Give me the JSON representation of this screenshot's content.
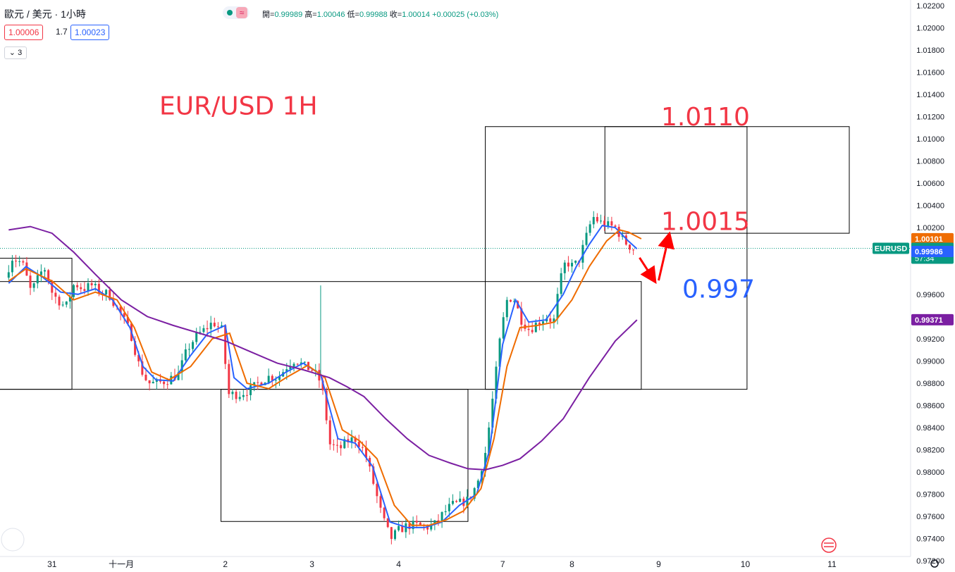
{
  "header": {
    "symbol_label": "歐元 / 美元 · 1小時",
    "open_label": "開",
    "open": "0.99989",
    "high_label": "高",
    "high": "1.00046",
    "low_label": "低",
    "low": "0.99988",
    "close_label": "收",
    "close": "1.00014",
    "change": "+0.00025 (+0.03%)",
    "bid": "1.00006",
    "spread": "1.7",
    "ask": "1.00023",
    "indicator_count": "3"
  },
  "chart_data": {
    "type": "candlestick",
    "ylim": [
      0.971,
      1.0225
    ],
    "y_ticks": [
      "1.02200",
      "1.02000",
      "1.01800",
      "1.01600",
      "1.01400",
      "1.01200",
      "1.01000",
      "1.00800",
      "1.00600",
      "1.00400",
      "1.00200",
      "0.99600",
      "0.99400",
      "0.99200",
      "0.99000",
      "0.98800",
      "0.98600",
      "0.98400",
      "0.98200",
      "0.98000",
      "0.97800",
      "0.97600",
      "0.97400",
      "0.97200"
    ],
    "x_ticks": [
      {
        "label": "31",
        "t": 0.5
      },
      {
        "label": "十一月",
        "t": 1.3
      },
      {
        "label": "2",
        "t": 2.5
      },
      {
        "label": "3",
        "t": 3.5
      },
      {
        "label": "4",
        "t": 4.5
      },
      {
        "label": "7",
        "t": 5.7
      },
      {
        "label": "8",
        "t": 6.5
      },
      {
        "label": "9",
        "t": 7.5
      },
      {
        "label": "10",
        "t": 8.5
      },
      {
        "label": "11",
        "t": 9.5
      }
    ],
    "price_path": [
      [
        0.0,
        0.9975
      ],
      [
        0.08,
        0.9993
      ],
      [
        0.2,
        0.9988
      ],
      [
        0.3,
        0.9962
      ],
      [
        0.45,
        0.9985
      ],
      [
        0.55,
        0.996
      ],
      [
        0.7,
        0.9948
      ],
      [
        0.8,
        0.997
      ],
      [
        0.9,
        0.9965
      ],
      [
        1.0,
        0.9968
      ],
      [
        1.1,
        0.9962
      ],
      [
        1.2,
        0.996
      ],
      [
        1.35,
        0.994
      ],
      [
        1.45,
        0.9925
      ],
      [
        1.55,
        0.9895
      ],
      [
        1.65,
        0.988
      ],
      [
        1.75,
        0.988
      ],
      [
        1.85,
        0.9882
      ],
      [
        2.0,
        0.9888
      ],
      [
        2.1,
        0.991
      ],
      [
        2.2,
        0.9922
      ],
      [
        2.3,
        0.9928
      ],
      [
        2.4,
        0.9935
      ],
      [
        2.5,
        0.9928
      ],
      [
        2.58,
        0.987
      ],
      [
        2.7,
        0.987
      ],
      [
        2.85,
        0.9875
      ],
      [
        2.95,
        0.9882
      ],
      [
        3.05,
        0.9886
      ],
      [
        3.15,
        0.9885
      ],
      [
        3.25,
        0.9895
      ],
      [
        3.35,
        0.9902
      ],
      [
        3.45,
        0.9895
      ],
      [
        3.55,
        0.9892
      ],
      [
        3.65,
        0.988
      ],
      [
        3.75,
        0.9825
      ],
      [
        3.85,
        0.982
      ],
      [
        3.95,
        0.9828
      ],
      [
        4.05,
        0.983
      ],
      [
        4.15,
        0.9818
      ],
      [
        4.25,
        0.979
      ],
      [
        4.35,
        0.976
      ],
      [
        4.45,
        0.974
      ],
      [
        4.55,
        0.9748
      ],
      [
        4.65,
        0.9752
      ],
      [
        4.75,
        0.9752
      ],
      [
        4.85,
        0.975
      ],
      [
        4.95,
        0.9752
      ],
      [
        5.05,
        0.9762
      ],
      [
        5.15,
        0.977
      ],
      [
        5.25,
        0.9772
      ],
      [
        5.35,
        0.9775
      ],
      [
        5.45,
        0.979
      ],
      [
        5.55,
        0.982
      ],
      [
        5.65,
        0.988
      ],
      [
        5.72,
        0.9925
      ],
      [
        5.8,
        0.9958
      ],
      [
        5.88,
        0.9955
      ],
      [
        5.95,
        0.9938
      ],
      [
        6.05,
        0.9928
      ],
      [
        6.15,
        0.9935
      ],
      [
        6.25,
        0.994
      ],
      [
        6.33,
        0.9935
      ],
      [
        6.4,
        0.997
      ],
      [
        6.47,
        0.999
      ],
      [
        6.55,
        0.9985
      ],
      [
        6.62,
        0.999
      ],
      [
        6.7,
        1.001
      ],
      [
        6.78,
        1.003
      ],
      [
        6.86,
        1.0025
      ],
      [
        6.95,
        1.0022
      ],
      [
        7.05,
        1.002
      ],
      [
        7.12,
        1.001
      ],
      [
        7.18,
        1.0005
      ],
      [
        7.25,
        1.0001
      ]
    ],
    "series": [
      {
        "name": "",
        "color": "#2962ff",
        "values": [
          [
            0.0,
            0.997
          ],
          [
            0.2,
            0.9985
          ],
          [
            0.4,
            0.9975
          ],
          [
            0.6,
            0.9962
          ],
          [
            0.8,
            0.996
          ],
          [
            1.0,
            0.9965
          ],
          [
            1.2,
            0.9955
          ],
          [
            1.4,
            0.993
          ],
          [
            1.55,
            0.9895
          ],
          [
            1.7,
            0.9883
          ],
          [
            1.9,
            0.9882
          ],
          [
            2.1,
            0.9905
          ],
          [
            2.3,
            0.9925
          ],
          [
            2.5,
            0.9932
          ],
          [
            2.6,
            0.9885
          ],
          [
            2.75,
            0.9875
          ],
          [
            3.0,
            0.988
          ],
          [
            3.2,
            0.989
          ],
          [
            3.4,
            0.9898
          ],
          [
            3.6,
            0.9888
          ],
          [
            3.8,
            0.983
          ],
          [
            4.0,
            0.9826
          ],
          [
            4.2,
            0.9805
          ],
          [
            4.4,
            0.9755
          ],
          [
            4.6,
            0.975
          ],
          [
            4.8,
            0.975
          ],
          [
            5.0,
            0.9755
          ],
          [
            5.2,
            0.977
          ],
          [
            5.4,
            0.978
          ],
          [
            5.55,
            0.982
          ],
          [
            5.7,
            0.9915
          ],
          [
            5.85,
            0.9955
          ],
          [
            6.0,
            0.9935
          ],
          [
            6.2,
            0.9937
          ],
          [
            6.4,
            0.996
          ],
          [
            6.55,
            0.9985
          ],
          [
            6.7,
            1.0005
          ],
          [
            6.85,
            1.0022
          ],
          [
            7.0,
            1.002
          ],
          [
            7.15,
            1.0008
          ],
          [
            7.25,
            1.0001
          ]
        ]
      },
      {
        "name": "",
        "color": "#ef6c00",
        "values": [
          [
            0.0,
            0.9972
          ],
          [
            0.2,
            0.9983
          ],
          [
            0.5,
            0.9972
          ],
          [
            0.75,
            0.9955
          ],
          [
            1.0,
            0.9962
          ],
          [
            1.25,
            0.9955
          ],
          [
            1.45,
            0.993
          ],
          [
            1.65,
            0.989
          ],
          [
            1.85,
            0.9883
          ],
          [
            2.1,
            0.9895
          ],
          [
            2.35,
            0.992
          ],
          [
            2.55,
            0.9925
          ],
          [
            2.75,
            0.988
          ],
          [
            3.0,
            0.9875
          ],
          [
            3.2,
            0.9885
          ],
          [
            3.45,
            0.9896
          ],
          [
            3.65,
            0.9885
          ],
          [
            3.85,
            0.9838
          ],
          [
            4.05,
            0.9828
          ],
          [
            4.25,
            0.9812
          ],
          [
            4.45,
            0.977
          ],
          [
            4.65,
            0.9752
          ],
          [
            4.85,
            0.9752
          ],
          [
            5.05,
            0.9757
          ],
          [
            5.25,
            0.9765
          ],
          [
            5.45,
            0.9785
          ],
          [
            5.6,
            0.983
          ],
          [
            5.75,
            0.9895
          ],
          [
            5.9,
            0.993
          ],
          [
            6.1,
            0.9932
          ],
          [
            6.3,
            0.9935
          ],
          [
            6.5,
            0.9955
          ],
          [
            6.7,
            0.9985
          ],
          [
            6.9,
            1.0008
          ],
          [
            7.05,
            1.0018
          ],
          [
            7.15,
            1.0016
          ],
          [
            7.3,
            1.001
          ]
        ]
      },
      {
        "name": "",
        "color": "#7b1fa2",
        "values": [
          [
            0.0,
            1.0018
          ],
          [
            0.25,
            1.0021
          ],
          [
            0.5,
            1.0015
          ],
          [
            0.75,
            0.9998
          ],
          [
            1.0,
            0.9978
          ],
          [
            1.3,
            0.9955
          ],
          [
            1.6,
            0.994
          ],
          [
            1.9,
            0.9932
          ],
          [
            2.2,
            0.9925
          ],
          [
            2.5,
            0.9918
          ],
          [
            2.8,
            0.9908
          ],
          [
            3.1,
            0.9898
          ],
          [
            3.4,
            0.9892
          ],
          [
            3.7,
            0.9885
          ],
          [
            3.9,
            0.9877
          ],
          [
            4.1,
            0.9868
          ],
          [
            4.35,
            0.9848
          ],
          [
            4.6,
            0.983
          ],
          [
            4.85,
            0.9815
          ],
          [
            5.1,
            0.9808
          ],
          [
            5.3,
            0.9803
          ],
          [
            5.5,
            0.9802
          ],
          [
            5.7,
            0.9806
          ],
          [
            5.9,
            0.9812
          ],
          [
            6.15,
            0.9828
          ],
          [
            6.4,
            0.9848
          ],
          [
            6.7,
            0.9885
          ],
          [
            7.0,
            0.9918
          ],
          [
            7.25,
            0.9937
          ]
        ]
      }
    ],
    "rectangles": [
      {
        "t1": -0.5,
        "t2": 0.73,
        "p1": 0.98745,
        "p2": 0.99925
      },
      {
        "t1": -0.5,
        "t2": 7.3,
        "p1": 0.98745,
        "p2": 0.99715
      },
      {
        "t1": 2.45,
        "t2": 5.3,
        "p1": 0.97555,
        "p2": 0.98745
      },
      {
        "t1": 5.5,
        "t2": 8.52,
        "p1": 0.98745,
        "p2": 1.0111
      },
      {
        "t1": 6.88,
        "t2": 9.7,
        "p1": 1.0015,
        "p2": 1.0111
      }
    ],
    "annotations": [
      {
        "text": "EUR/USD 1H",
        "t": 1.3,
        "p": 1.0122,
        "color": "#f23645",
        "size": 36
      },
      {
        "text": "1.0110",
        "t": 7.5,
        "p": 1.0112,
        "color": "#f23645",
        "size": 36
      },
      {
        "text": "1.0015",
        "t": 7.5,
        "p": 1.0018,
        "color": "#f23645",
        "size": 36
      },
      {
        "text": "0.997",
        "t": 7.7,
        "p": 0.9957,
        "color": "#2962ff",
        "size": 36
      }
    ],
    "arrows": [
      {
        "from": [
          7.28,
          0.9993
        ],
        "to": [
          7.45,
          0.99725
        ]
      },
      {
        "from": [
          7.5,
          0.99725
        ],
        "to": [
          7.62,
          1.0013
        ]
      }
    ],
    "price_labels": [
      {
        "text": "1.00101",
        "p": 1.00101,
        "bg": "#ef6c00"
      },
      {
        "text": "1.00014",
        "sub": "57:34",
        "p": 1.00014,
        "bg": "#089981"
      },
      {
        "text": "0.99986",
        "p": 0.99986,
        "bg": "#2962ff"
      },
      {
        "text": "0.99371",
        "p": 0.99371,
        "bg": "#7b1fa2"
      }
    ],
    "symbol_tag": "EURUSD"
  }
}
